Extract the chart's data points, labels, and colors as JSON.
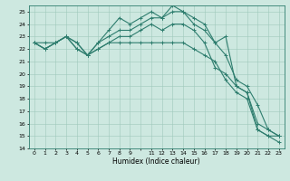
{
  "xlabel": "Humidex (Indice chaleur)",
  "xlim": [
    -0.5,
    23.5
  ],
  "ylim": [
    14,
    25.5
  ],
  "yticks": [
    14,
    15,
    16,
    17,
    18,
    19,
    20,
    21,
    22,
    23,
    24,
    25
  ],
  "xtick_labels": [
    "0",
    "1",
    "2",
    "3",
    "4",
    "5",
    "6",
    "7",
    "8",
    "9",
    "",
    "11",
    "12",
    "13",
    "14",
    "15",
    "16",
    "17",
    "18",
    "19",
    "20",
    "21",
    "22",
    "23"
  ],
  "background_color": "#cde8e0",
  "grid_color": "#9fc8bc",
  "line_color": "#2e7d6e",
  "line_width": 0.8,
  "marker": "+",
  "marker_size": 3,
  "series": [
    [
      22.5,
      22.0,
      22.5,
      23.0,
      22.5,
      21.5,
      22.5,
      23.5,
      24.5,
      24.0,
      24.5,
      25.0,
      24.5,
      25.5,
      25.0,
      24.0,
      23.5,
      22.5,
      23.0,
      19.0,
      18.5,
      15.5,
      15.0,
      14.5
    ],
    [
      22.5,
      22.0,
      22.5,
      23.0,
      22.5,
      21.5,
      22.0,
      22.5,
      22.5,
      22.5,
      22.5,
      22.5,
      22.5,
      22.5,
      22.5,
      22.0,
      21.5,
      21.0,
      19.5,
      18.5,
      18.0,
      15.5,
      15.0,
      15.0
    ],
    [
      22.5,
      22.5,
      22.5,
      23.0,
      22.0,
      21.5,
      22.0,
      22.5,
      23.0,
      23.0,
      23.5,
      24.0,
      23.5,
      24.0,
      24.0,
      23.5,
      22.5,
      20.5,
      20.0,
      19.0,
      18.5,
      16.0,
      15.5,
      15.0
    ],
    [
      22.5,
      22.0,
      22.5,
      23.0,
      22.0,
      21.5,
      22.5,
      23.0,
      23.5,
      23.5,
      24.0,
      24.5,
      24.5,
      25.0,
      25.0,
      24.5,
      24.0,
      22.5,
      21.5,
      19.5,
      19.0,
      17.5,
      15.5,
      15.0
    ]
  ]
}
